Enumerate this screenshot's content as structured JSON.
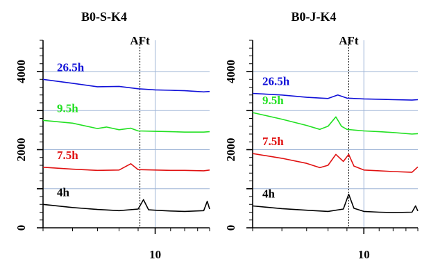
{
  "chart_data": [
    {
      "type": "line",
      "title": "B0-S-K4",
      "xscale": "log",
      "xlim": [
        5,
        14
      ],
      "ylim": [
        0,
        4800
      ],
      "yticks": [
        0,
        2000,
        4000
      ],
      "xticks": [
        10
      ],
      "grid": true,
      "annotation": {
        "text": "AFt",
        "x": 9.1
      },
      "series": [
        {
          "name": "26.5h",
          "color": "#1010d8",
          "x": [
            5.0,
            6.0,
            7.0,
            8.0,
            9.0,
            10.0,
            11.0,
            12.0,
            13.5,
            14.0
          ],
          "y": [
            3800,
            3700,
            3610,
            3620,
            3560,
            3530,
            3520,
            3510,
            3480,
            3490
          ]
        },
        {
          "name": "9.5h",
          "color": "#22e022",
          "x": [
            5.0,
            6.0,
            7.0,
            7.4,
            8.0,
            8.6,
            9.0,
            10.0,
            11.0,
            12.0,
            13.5,
            14.0
          ],
          "y": [
            2750,
            2680,
            2540,
            2580,
            2510,
            2550,
            2480,
            2470,
            2460,
            2450,
            2450,
            2460
          ]
        },
        {
          "name": "7.5h",
          "color": "#e01010",
          "x": [
            5.0,
            6.0,
            7.0,
            8.0,
            8.6,
            9.0,
            10.0,
            11.0,
            12.0,
            13.5,
            14.0
          ],
          "y": [
            1550,
            1500,
            1470,
            1480,
            1640,
            1490,
            1480,
            1470,
            1470,
            1460,
            1480
          ]
        },
        {
          "name": "4h",
          "color": "#000000",
          "x": [
            5.0,
            6.0,
            7.0,
            8.0,
            9.0,
            9.3,
            9.6,
            10.0,
            11.0,
            12.0,
            13.5,
            13.8,
            14.0
          ],
          "y": [
            600,
            520,
            470,
            440,
            480,
            720,
            460,
            450,
            430,
            420,
            440,
            680,
            480
          ]
        }
      ]
    },
    {
      "type": "line",
      "title": "B0-J-K4",
      "xscale": "log",
      "xlim": [
        5,
        14
      ],
      "ylim": [
        0,
        4800
      ],
      "yticks": [
        0,
        2000,
        4000
      ],
      "xticks": [
        10
      ],
      "grid": true,
      "annotation": {
        "text": "AFt",
        "x": 9.1
      },
      "series": [
        {
          "name": "26.5h",
          "color": "#1010d8",
          "x": [
            5.0,
            6.0,
            7.0,
            8.0,
            8.5,
            9.0,
            10.0,
            11.0,
            12.0,
            13.5,
            14.0
          ],
          "y": [
            3440,
            3400,
            3340,
            3310,
            3400,
            3320,
            3300,
            3290,
            3280,
            3270,
            3280
          ]
        },
        {
          "name": "9.5h",
          "color": "#22e022",
          "x": [
            5.0,
            6.0,
            7.0,
            7.6,
            8.0,
            8.4,
            8.7,
            9.0,
            10.0,
            11.0,
            12.0,
            13.5,
            14.0
          ],
          "y": [
            2950,
            2780,
            2620,
            2520,
            2600,
            2840,
            2600,
            2520,
            2480,
            2460,
            2440,
            2400,
            2410
          ]
        },
        {
          "name": "7.5h",
          "color": "#e01010",
          "x": [
            5.0,
            6.0,
            7.0,
            7.6,
            8.0,
            8.4,
            8.8,
            9.1,
            9.4,
            10.0,
            11.0,
            12.0,
            13.5,
            14.0
          ],
          "y": [
            1900,
            1780,
            1650,
            1540,
            1600,
            1880,
            1700,
            1880,
            1580,
            1480,
            1460,
            1440,
            1420,
            1560
          ]
        },
        {
          "name": "4h",
          "color": "#000000",
          "x": [
            5.0,
            6.0,
            7.0,
            8.0,
            8.8,
            9.1,
            9.4,
            10.0,
            11.0,
            12.0,
            13.5,
            13.8,
            14.0
          ],
          "y": [
            560,
            490,
            450,
            420,
            480,
            860,
            500,
            420,
            400,
            390,
            400,
            560,
            430
          ]
        }
      ]
    }
  ]
}
